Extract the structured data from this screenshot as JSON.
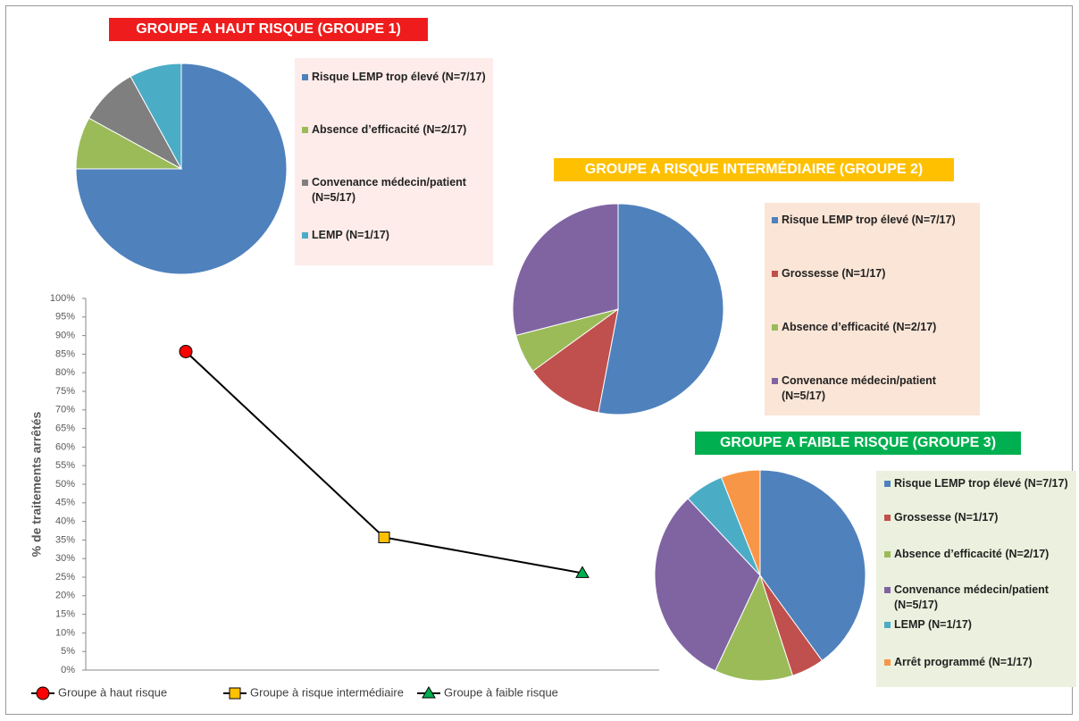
{
  "chart_data": [
    {
      "type": "pie",
      "title": "GROUPE A  HAUT RISQUE (GROUPE 1)",
      "title_color": "#ee1c1c",
      "legend_bg": "#fdece9",
      "series": [
        {
          "name": "Risque LEMP trop élevé (N=7/17)",
          "color": "#4f81bd",
          "values": [
            75
          ]
        },
        {
          "name": "Absence d’efficacité (N=2/17)",
          "color": "#9bbb59",
          "values": [
            8
          ]
        },
        {
          "name": "Convenance médecin/patient (N=5/17)",
          "color": "#7f7f7f",
          "values": [
            9
          ]
        },
        {
          "name": "LEMP (N=1/17)",
          "color": "#4bacc6",
          "values": [
            8
          ]
        }
      ]
    },
    {
      "type": "pie",
      "title": "GROUPE A RISQUE INTERMÉDIAIRE (GROUPE 2)",
      "title_color": "#ffc000",
      "legend_bg": "#fbe5d6",
      "series": [
        {
          "name": "Risque LEMP trop élevé (N=7/17)",
          "color": "#4f81bd",
          "values": [
            53
          ]
        },
        {
          "name": "Grossesse  (N=1/17)",
          "color": "#c0504d",
          "values": [
            12
          ]
        },
        {
          "name": "Absence d’efficacité (N=2/17)",
          "color": "#9bbb59",
          "values": [
            6
          ]
        },
        {
          "name": "Convenance médecin/patient (N=5/17)",
          "color": "#8064a2",
          "values": [
            29
          ]
        }
      ]
    },
    {
      "type": "pie",
      "title": "GROUPE A FAIBLE RISQUE (GROUPE 3)",
      "title_color": "#00b050",
      "legend_bg": "#ebf1de",
      "series": [
        {
          "name": "Risque LEMP trop élevé (N=7/17)",
          "color": "#4f81bd",
          "values": [
            40
          ]
        },
        {
          "name": "Grossesse  (N=1/17)",
          "color": "#c0504d",
          "values": [
            5
          ]
        },
        {
          "name": "Absence d’efficacité (N=2/17)",
          "color": "#9bbb59",
          "values": [
            12
          ]
        },
        {
          "name": "Convenance médecin/patient (N=5/17)",
          "color": "#8064a2",
          "values": [
            31
          ]
        },
        {
          "name": "LEMP (N=1/17)",
          "color": "#4bacc6",
          "values": [
            6
          ]
        },
        {
          "name": "Arrêt programmé  (N=1/17)",
          "color": "#f79646",
          "values": [
            6
          ]
        }
      ]
    },
    {
      "type": "line",
      "y_label": "% de traitements arrêtés",
      "line_color": "#000000",
      "categories": [
        null,
        null,
        null
      ],
      "ylim": [
        0,
        100
      ],
      "yticks": [
        {
          "value": 0,
          "label": "0%"
        },
        {
          "value": 5,
          "label": "5%"
        },
        {
          "value": 10,
          "label": "10%"
        },
        {
          "value": 15,
          "label": "15%"
        },
        {
          "value": 20,
          "label": "20%"
        },
        {
          "value": 25,
          "label": "25%"
        },
        {
          "value": 30,
          "label": "30%"
        },
        {
          "value": 35,
          "label": "35%"
        },
        {
          "value": 40,
          "label": "40%"
        },
        {
          "value": 45,
          "label": "45%"
        },
        {
          "value": 50,
          "label": "50%"
        },
        {
          "value": 55,
          "label": "55%"
        },
        {
          "value": 60,
          "label": "60%"
        },
        {
          "value": 65,
          "label": "65%"
        },
        {
          "value": 70,
          "label": "70%"
        },
        {
          "value": 75,
          "label": "75%"
        },
        {
          "value": 80,
          "label": "80%"
        },
        {
          "value": 85,
          "label": "85%"
        },
        {
          "value": 90,
          "label": "90%"
        },
        {
          "value": 95,
          "label": "95%"
        },
        {
          "value": 100,
          "label": "100%"
        }
      ],
      "series": [
        {
          "name": "Groupe à haut risque",
          "color": "#ff0000",
          "marker": "circle",
          "values": [
            85.7,
            null,
            null
          ]
        },
        {
          "name": "Groupe à  risque intermédiaire",
          "color": "#ffc000",
          "marker": "square",
          "values": [
            null,
            35.7,
            null
          ]
        },
        {
          "name": "Groupe à faible  risque",
          "color": "#00b050",
          "marker": "triangle",
          "values": [
            null,
            null,
            26.1
          ]
        }
      ]
    }
  ]
}
